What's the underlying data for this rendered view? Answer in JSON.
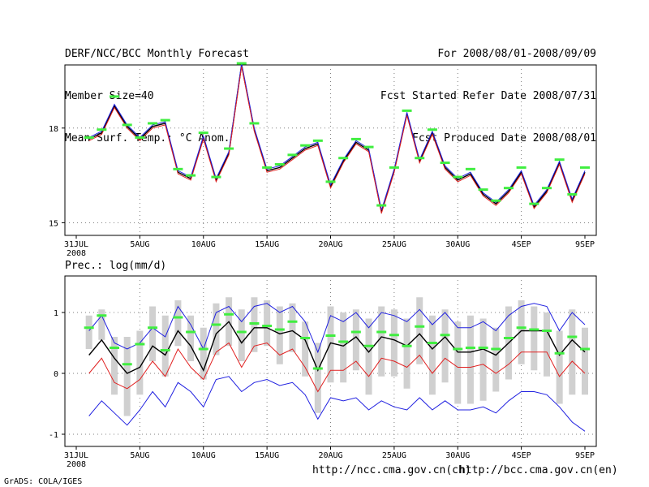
{
  "header": {
    "left": [
      "DERF/NCC/BCC Monthly Forecast",
      "Member Size=40",
      "Mean Surf. Temp.: °C Anom."
    ],
    "right": [
      "For 2008/08/01-2008/09/09",
      "Fcst Started Refer Date 2008/07/31",
      "Fcst Produced Date 2008/08/01"
    ]
  },
  "footer": {
    "links": [
      "http://ncc.cma.gov.cn(ch)",
      "http://bcc.cma.gov.cn(en)"
    ],
    "credit": "GrADS: COLA/IGES"
  },
  "colors": {
    "mean": "#000000",
    "upper": "#2020e0",
    "lower": "#e02020",
    "marker": "#40ee40",
    "box": "#d0d0d0",
    "grid": "#808080"
  },
  "chart_data": [
    {
      "type": "line",
      "title": "Mean Surf. Temp.: °C Anom.",
      "x_tick_labels": [
        "31JUL",
        "5AUG",
        "10AUG",
        "15AUG",
        "20AUG",
        "25AUG",
        "30AUG",
        "4SEP",
        "9SEP"
      ],
      "x_tick_days": [
        0,
        5,
        10,
        15,
        20,
        25,
        30,
        35,
        40
      ],
      "x_sub_label": "2008",
      "ylim": [
        14.6,
        20.0
      ],
      "y_ticks": [
        15,
        18
      ],
      "days": [
        1,
        2,
        3,
        4,
        5,
        6,
        7,
        8,
        9,
        10,
        11,
        12,
        13,
        14,
        15,
        16,
        17,
        18,
        19,
        20,
        21,
        22,
        23,
        24,
        25,
        26,
        27,
        28,
        29,
        30,
        31,
        32,
        33,
        34,
        35,
        36,
        37,
        38,
        39,
        40
      ],
      "series": [
        {
          "name": "ensemble-mean",
          "values": [
            17.65,
            17.85,
            18.7,
            18.05,
            17.65,
            18.05,
            18.15,
            16.6,
            16.4,
            17.7,
            16.35,
            17.2,
            20.0,
            17.95,
            16.65,
            16.75,
            17.05,
            17.35,
            17.5,
            16.15,
            16.95,
            17.55,
            17.3,
            15.35,
            16.65,
            18.45,
            16.95,
            17.85,
            16.75,
            16.35,
            16.55,
            15.9,
            15.6,
            16.0,
            16.6,
            15.5,
            16.0,
            16.9,
            15.7,
            16.6
          ]
        },
        {
          "name": "upper",
          "values": [
            17.7,
            17.9,
            18.75,
            18.1,
            17.7,
            18.1,
            18.2,
            16.65,
            16.45,
            17.75,
            16.4,
            17.25,
            20.05,
            18.0,
            16.7,
            16.8,
            17.1,
            17.4,
            17.55,
            16.2,
            17.0,
            17.6,
            17.35,
            15.4,
            16.7,
            18.5,
            17.0,
            17.9,
            16.8,
            16.4,
            16.6,
            15.95,
            15.65,
            16.05,
            16.65,
            15.55,
            16.05,
            16.95,
            15.75,
            16.65
          ]
        },
        {
          "name": "lower",
          "values": [
            17.6,
            17.8,
            18.65,
            18.0,
            17.6,
            18.0,
            18.1,
            16.55,
            16.35,
            17.65,
            16.3,
            17.15,
            19.95,
            17.9,
            16.6,
            16.7,
            17.0,
            17.3,
            17.45,
            16.1,
            16.9,
            17.5,
            17.25,
            15.3,
            16.6,
            18.4,
            16.9,
            17.8,
            16.7,
            16.3,
            16.5,
            15.85,
            15.55,
            15.95,
            16.55,
            15.45,
            15.95,
            16.85,
            15.65,
            16.55
          ]
        },
        {
          "name": "observed-markers",
          "values": [
            17.7,
            17.95,
            19.0,
            18.1,
            17.7,
            18.15,
            18.25,
            16.7,
            16.5,
            17.85,
            16.45,
            17.35,
            20.05,
            18.15,
            16.75,
            16.85,
            17.15,
            17.45,
            17.6,
            16.3,
            17.05,
            17.65,
            17.4,
            15.55,
            16.75,
            18.55,
            17.05,
            17.95,
            16.9,
            16.45,
            16.7,
            16.05,
            15.7,
            16.1,
            16.75,
            15.6,
            16.1,
            17.0,
            15.9,
            16.75
          ]
        }
      ]
    },
    {
      "type": "line",
      "title": "Prec.: log(mm/d)",
      "x_tick_labels": [
        "31JUL",
        "5AUG",
        "10AUG",
        "15AUG",
        "20AUG",
        "25AUG",
        "30AUG",
        "4SEP",
        "9SEP"
      ],
      "x_tick_days": [
        0,
        5,
        10,
        15,
        20,
        25,
        30,
        35,
        40
      ],
      "x_sub_label": "2008",
      "ylim": [
        -1.2,
        1.6
      ],
      "y_ticks": [
        -1,
        0,
        1
      ],
      "days": [
        1,
        2,
        3,
        4,
        5,
        6,
        7,
        8,
        9,
        10,
        11,
        12,
        13,
        14,
        15,
        16,
        17,
        18,
        19,
        20,
        21,
        22,
        23,
        24,
        25,
        26,
        27,
        28,
        29,
        30,
        31,
        32,
        33,
        34,
        35,
        36,
        37,
        38,
        39,
        40
      ],
      "series": [
        {
          "name": "ensemble-mean",
          "values": [
            0.3,
            0.55,
            0.25,
            0.0,
            0.1,
            0.45,
            0.3,
            0.7,
            0.45,
            0.05,
            0.65,
            0.85,
            0.5,
            0.75,
            0.75,
            0.65,
            0.7,
            0.55,
            0.05,
            0.5,
            0.45,
            0.6,
            0.35,
            0.6,
            0.55,
            0.45,
            0.65,
            0.4,
            0.6,
            0.35,
            0.35,
            0.4,
            0.3,
            0.5,
            0.7,
            0.7,
            0.7,
            0.3,
            0.55,
            0.35
          ]
        },
        {
          "name": "upper",
          "values": [
            0.7,
            0.95,
            0.5,
            0.4,
            0.5,
            0.75,
            0.6,
            1.1,
            0.8,
            0.4,
            1.0,
            1.1,
            0.85,
            1.1,
            1.15,
            1.0,
            1.1,
            0.85,
            0.35,
            0.95,
            0.85,
            1.0,
            0.75,
            1.0,
            0.95,
            0.85,
            1.05,
            0.8,
            1.0,
            0.75,
            0.75,
            0.85,
            0.7,
            0.95,
            1.1,
            1.15,
            1.1,
            0.7,
            1.0,
            0.8
          ]
        },
        {
          "name": "lower",
          "values": [
            0.0,
            0.25,
            -0.15,
            -0.25,
            -0.1,
            0.2,
            -0.05,
            0.4,
            0.1,
            -0.1,
            0.35,
            0.5,
            0.1,
            0.45,
            0.5,
            0.3,
            0.4,
            0.1,
            -0.3,
            0.05,
            0.05,
            0.2,
            -0.05,
            0.25,
            0.2,
            0.1,
            0.3,
            0.0,
            0.25,
            0.1,
            0.1,
            0.15,
            0.0,
            0.15,
            0.35,
            0.35,
            0.35,
            -0.05,
            0.2,
            0.0
          ]
        },
        {
          "name": "min",
          "values": [
            -0.7,
            -0.45,
            -0.65,
            -0.85,
            -0.6,
            -0.3,
            -0.55,
            -0.15,
            -0.3,
            -0.55,
            -0.1,
            -0.05,
            -0.3,
            -0.15,
            -0.1,
            -0.2,
            -0.15,
            -0.35,
            -0.75,
            -0.4,
            -0.45,
            -0.4,
            -0.6,
            -0.45,
            -0.55,
            -0.6,
            -0.4,
            -0.6,
            -0.45,
            -0.6,
            -0.6,
            -0.55,
            -0.65,
            -0.45,
            -0.3,
            -0.3,
            -0.35,
            -0.55,
            -0.8,
            -0.95
          ]
        },
        {
          "name": "observed-markers",
          "values": [
            0.75,
            0.95,
            0.42,
            0.15,
            0.48,
            0.75,
            0.38,
            0.92,
            0.68,
            0.4,
            0.8,
            0.97,
            0.68,
            0.82,
            0.78,
            0.72,
            0.85,
            0.58,
            0.08,
            0.62,
            0.52,
            0.68,
            0.45,
            0.68,
            0.63,
            0.45,
            0.77,
            0.5,
            0.63,
            0.4,
            0.42,
            0.42,
            0.4,
            0.58,
            0.75,
            0.72,
            0.7,
            0.33,
            0.6,
            0.4
          ]
        }
      ],
      "boxes": {
        "top": [
          0.95,
          1.05,
          0.6,
          0.6,
          0.7,
          1.1,
          0.95,
          1.2,
          0.95,
          0.75,
          1.15,
          1.25,
          1.05,
          1.25,
          1.2,
          1.1,
          1.15,
          0.85,
          0.5,
          1.1,
          1.0,
          1.05,
          0.9,
          1.1,
          1.05,
          0.9,
          1.25,
          0.95,
          1.05,
          0.85,
          0.95,
          0.9,
          0.75,
          1.1,
          1.2,
          1.1,
          1.0,
          0.7,
          1.05,
          0.75
        ],
        "bottom": [
          0.4,
          0.55,
          -0.35,
          -0.7,
          -0.35,
          0.2,
          -0.05,
          0.45,
          0.2,
          -0.1,
          0.3,
          0.45,
          0.2,
          0.35,
          0.45,
          0.15,
          0.35,
          -0.05,
          -0.65,
          -0.15,
          -0.15,
          0.05,
          -0.35,
          -0.05,
          -0.05,
          -0.25,
          0.15,
          -0.35,
          -0.15,
          -0.5,
          -0.5,
          -0.45,
          -0.3,
          -0.1,
          0.15,
          0.05,
          -0.05,
          -0.5,
          -0.35,
          -0.35
        ]
      }
    }
  ]
}
